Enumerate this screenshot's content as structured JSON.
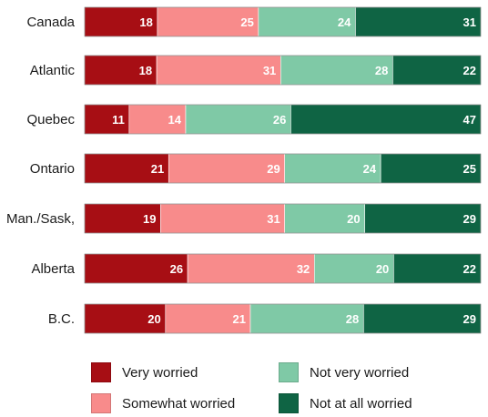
{
  "chart_data": {
    "type": "bar",
    "orientation": "horizontal",
    "stacked": true,
    "percent_scale": true,
    "categories": [
      "Canada",
      "Atlantic",
      "Quebec",
      "Ontario",
      "Man./Sask,",
      "Alberta",
      "B.C."
    ],
    "series": [
      {
        "name": "Very worried",
        "color": "#a70e14",
        "values": [
          18,
          18,
          11,
          21,
          19,
          26,
          20
        ]
      },
      {
        "name": "Somewhat worried",
        "color": "#f88b8b",
        "values": [
          25,
          31,
          14,
          29,
          31,
          32,
          21
        ]
      },
      {
        "name": "Not very worried",
        "color": "#7fc9a6",
        "values": [
          24,
          28,
          26,
          24,
          20,
          20,
          28
        ]
      },
      {
        "name": "Not at all worried",
        "color": "#0f6444",
        "values": [
          31,
          22,
          47,
          25,
          29,
          22,
          29
        ]
      }
    ],
    "legend_position": "bottom",
    "grid": false
  }
}
